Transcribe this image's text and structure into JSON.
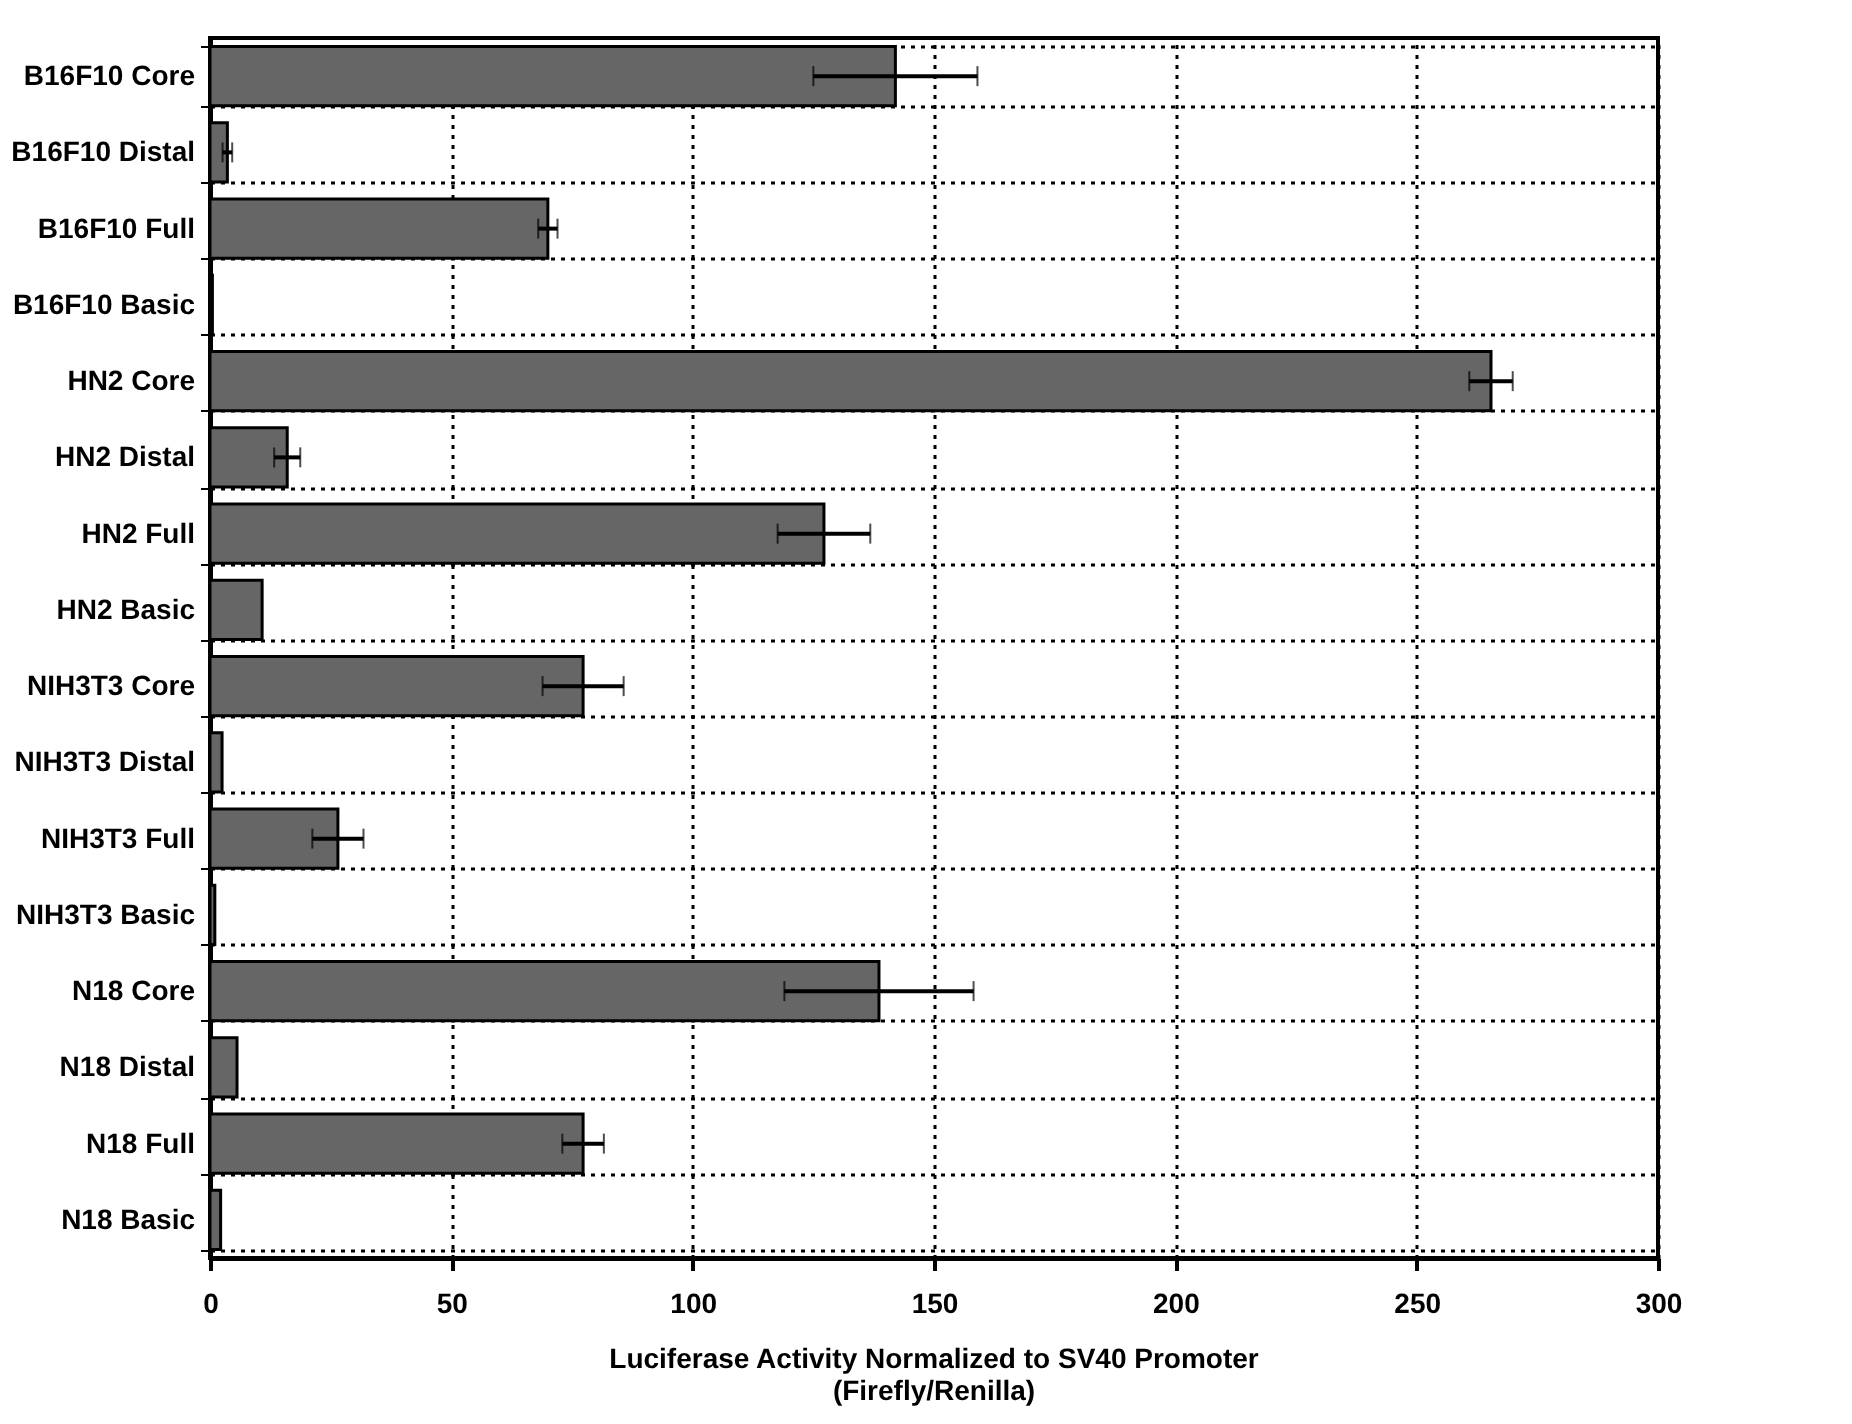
{
  "chart_data": {
    "type": "bar",
    "orientation": "horizontal",
    "xlabel": "Luciferase Activity Normalized to SV40 Promoter\n(Firefly/Renilla)",
    "categories": [
      "B16F10 Core",
      "B16F10 Distal",
      "B16F10 Full",
      "B16F10 Basic",
      "HN2 Core",
      "HN2 Distal",
      "HN2 Full",
      "HN2 Basic",
      "NIH3T3 Core",
      "NIH3T3 Distal",
      "NIH3T3 Full",
      "NIH3T3 Basic",
      "N18 Core",
      "N18 Distal",
      "N18 Full",
      "N18 Basic"
    ],
    "values": [
      142,
      3.6,
      70,
      0.5,
      265.4,
      16,
      127.2,
      10.8,
      77.3,
      2.5,
      26.5,
      1,
      138.6,
      5.6,
      77.3,
      2.2
    ],
    "errors": [
      17,
      1,
      2,
      null,
      4.5,
      2.7,
      9.6,
      null,
      8.4,
      null,
      5.3,
      null,
      19.6,
      null,
      4.3,
      null
    ],
    "color": "#666666",
    "xlim": [
      0,
      300
    ],
    "xticks": [
      0,
      50,
      100,
      150,
      200,
      250,
      300
    ],
    "grid": true
  }
}
